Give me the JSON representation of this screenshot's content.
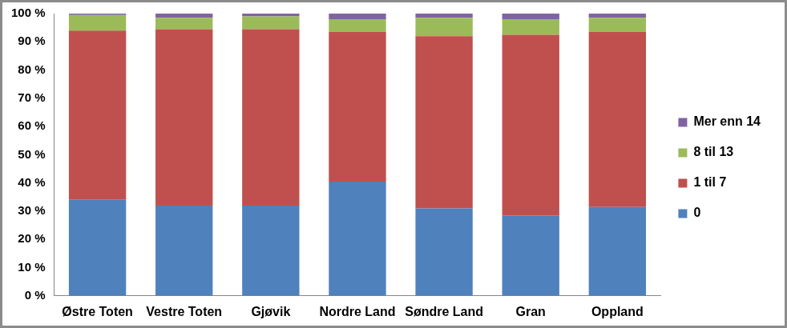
{
  "chart_data": {
    "type": "bar",
    "stacked": true,
    "grid": false,
    "legend": "right",
    "categories": [
      "Østre Toten",
      "Vestre Toten",
      "Gjøvik",
      "Nordre Land",
      "Søndre Land",
      "Gran",
      "Oppland"
    ],
    "series": [
      {
        "name": "0",
        "color": "#4f81bd",
        "values": [
          34,
          32,
          32,
          40.5,
          31,
          28.5,
          31.5
        ]
      },
      {
        "name": "1 til 7",
        "color": "#c0504d",
        "values": [
          60,
          62.5,
          62.5,
          53,
          61,
          64,
          62
        ]
      },
      {
        "name": "8 til 13",
        "color": "#9bbb59",
        "values": [
          5.5,
          4,
          4.5,
          4.5,
          6.5,
          5.5,
          5
        ]
      },
      {
        "name": "Mer enn 14",
        "color": "#8064a2",
        "values": [
          0.5,
          1.5,
          1,
          2,
          1.5,
          2,
          1.5
        ]
      }
    ],
    "ylim": [
      0,
      100
    ],
    "yticks": [
      {
        "value": 0,
        "label": "0 %"
      },
      {
        "value": 10,
        "label": "10 %"
      },
      {
        "value": 20,
        "label": "20 %"
      },
      {
        "value": 30,
        "label": "30 %"
      },
      {
        "value": 40,
        "label": "40 %"
      },
      {
        "value": 50,
        "label": "50 %"
      },
      {
        "value": 60,
        "label": "60 %"
      },
      {
        "value": 70,
        "label": "70 %"
      },
      {
        "value": 80,
        "label": "80 %"
      },
      {
        "value": 90,
        "label": "90 %"
      },
      {
        "value": 100,
        "label": "100 %"
      }
    ]
  }
}
